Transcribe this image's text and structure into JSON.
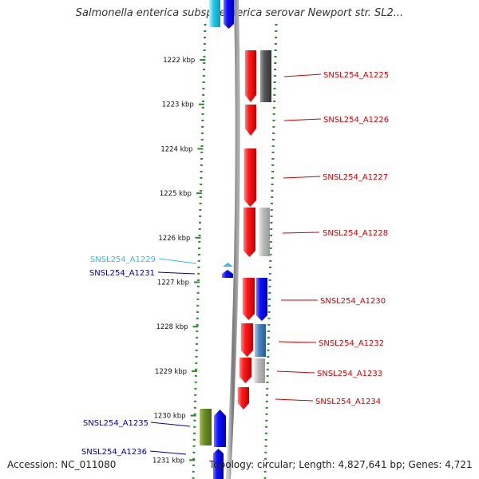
{
  "title": "Salmonella enterica subsp. enterica serovar Newport str. SL2...",
  "footer": {
    "accession": "Accession: NC_011080",
    "topology": "Topology: circular; Length: 4,827,641 bp; Genes: 4,721"
  },
  "colors": {
    "scale_dots": "#2a8a2a",
    "forward_label": "#d40000",
    "reverse_label": "#0000aa",
    "rna_label": "#33bbee"
  },
  "scale": {
    "unit": "kbp",
    "ticks": [
      {
        "kbp": 1222,
        "label": "1222 kbp"
      },
      {
        "kbp": 1223,
        "label": "1223 kbp"
      },
      {
        "kbp": 1224,
        "label": "1224 kbp"
      },
      {
        "kbp": 1225,
        "label": "1225 kbp"
      },
      {
        "kbp": 1226,
        "label": "1226 kbp"
      },
      {
        "kbp": 1227,
        "label": "1227 kbp"
      },
      {
        "kbp": 1228,
        "label": "1228 kbp"
      },
      {
        "kbp": 1229,
        "label": "1229 kbp"
      },
      {
        "kbp": 1230,
        "label": "1230 kbp"
      },
      {
        "kbp": 1231,
        "label": "1231 kbp"
      }
    ]
  },
  "gene_labels": [
    {
      "name": "SNSL254_A1225",
      "side": "right",
      "kind": "forward"
    },
    {
      "name": "SNSL254_A1226",
      "side": "right",
      "kind": "forward"
    },
    {
      "name": "SNSL254_A1227",
      "side": "right",
      "kind": "forward"
    },
    {
      "name": "SNSL254_A1228",
      "side": "right",
      "kind": "forward"
    },
    {
      "name": "SNSL254_A1229",
      "side": "left",
      "kind": "rna"
    },
    {
      "name": "SNSL254_A1231",
      "side": "left",
      "kind": "reverse"
    },
    {
      "name": "SNSL254_A1230",
      "side": "right",
      "kind": "forward"
    },
    {
      "name": "SNSL254_A1232",
      "side": "right",
      "kind": "forward"
    },
    {
      "name": "SNSL254_A1233",
      "side": "right",
      "kind": "forward"
    },
    {
      "name": "SNSL254_A1234",
      "side": "right",
      "kind": "forward"
    },
    {
      "name": "SNSL254_A1235",
      "side": "left",
      "kind": "reverse"
    },
    {
      "name": "SNSL254_A1236",
      "side": "left",
      "kind": "reverse"
    }
  ]
}
